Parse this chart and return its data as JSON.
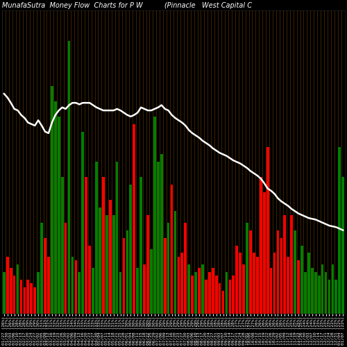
{
  "title": "MunafaSutra  Money Flow  Charts for P W          (Pinnacle   West Capital C",
  "background_color": "#000000",
  "line_color": "#ffffff",
  "categories": [
    "01/27 (26%)",
    "01/30 (27%)",
    "02/03 (26%)",
    "02/06 (26%)",
    "02/10 (28%)",
    "02/13 (28%)",
    "02/17 (28%)",
    "02/20 (29%)",
    "02/24 (29%)",
    "02/27 (29%)",
    "03/02 (30%)",
    "03/05 (31%)",
    "03/09 (31%)",
    "03/12 (31%)",
    "03/16 (31%)",
    "03/19 (32%)",
    "03/23 (32%)",
    "03/26 (33%)",
    "03/30 (33%)",
    "04/02 (33%)",
    "04/06 (34%)",
    "04/09 (34%)",
    "04/13 (33%)",
    "04/16 (33%)",
    "04/20 (33%)",
    "04/23 (33%)",
    "04/27 (33%)",
    "04/30 (33%)",
    "05/04 (33%)",
    "05/07 (33%)",
    "05/11 (32%)",
    "05/14 (32%)",
    "05/18 (31%)",
    "05/21 (31%)",
    "05/25 (31%)",
    "05/28 (31%)",
    "06/01 (30%)",
    "06/04 (30%)",
    "06/08 (30%)",
    "06/11 (30%)",
    "06/15 (30%)",
    "06/18 (30%)",
    "06/22 (30%)",
    "06/25 (30%)",
    "06/29 (30%)",
    "07/02 (30%)",
    "07/06 (30%)",
    "07/09 (29%)",
    "07/13 (29%)",
    "07/16 (29%)",
    "07/20 (29%)",
    "07/23 (29%)",
    "07/27 (29%)",
    "07/30 (29%)",
    "08/03 (29%)",
    "08/06 (29%)",
    "08/10 (29%)",
    "08/13 (29%)",
    "08/17 (29%)",
    "08/20 (29%)",
    "08/24 (29%)",
    "08/27 (28%)",
    "08/31 (28%)",
    "09/03 (28%)",
    "09/07 (28%)",
    "09/10 (28%)",
    "09/14 (28%)",
    "09/17 (28%)",
    "09/21 (27%)",
    "09/24 (27%)",
    "09/28 (27%)",
    "10/01 (27%)",
    "10/05 (27%)",
    "10/08 (27%)",
    "10/12 (26%)",
    "10/15 (26%)",
    "10/19 (26%)",
    "10/22 (26%)",
    "10/26 (26%)",
    "10/29 (26%)",
    "11/02 (26%)",
    "11/05 (26%)",
    "11/09 (25%)",
    "11/12 (25%)",
    "11/16 (25%)",
    "11/19 (25%)",
    "11/23 (25%)",
    "11/26 (25%)",
    "11/30 (24%)",
    "12/03 (24%)",
    "12/07 (24%)",
    "12/10 (24%)",
    "12/14 (23%)",
    "12/17 (23%)",
    "12/21 (23%)",
    "12/24 (23%)",
    "12/28 (22%)",
    "12/31 (22%)",
    "01/04 (22%)",
    "01/07 (22%)"
  ],
  "values": [
    55,
    75,
    60,
    50,
    65,
    45,
    35,
    45,
    40,
    35,
    55,
    120,
    100,
    75,
    300,
    280,
    260,
    180,
    120,
    360,
    75,
    70,
    55,
    240,
    180,
    90,
    60,
    200,
    140,
    180,
    130,
    150,
    130,
    200,
    55,
    100,
    110,
    170,
    250,
    60,
    180,
    65,
    130,
    85,
    260,
    200,
    210,
    100,
    120,
    170,
    135,
    75,
    80,
    120,
    65,
    50,
    55,
    60,
    65,
    45,
    55,
    60,
    50,
    40,
    30,
    55,
    45,
    50,
    90,
    80,
    65,
    120,
    110,
    80,
    75,
    180,
    160,
    220,
    60,
    80,
    110,
    100,
    130,
    75,
    130,
    110,
    70,
    90,
    55,
    80,
    60,
    55,
    50,
    65,
    55,
    45,
    65,
    45,
    220,
    180
  ],
  "bar_colors": [
    "green",
    "red",
    "red",
    "red",
    "green",
    "red",
    "red",
    "red",
    "red",
    "red",
    "green",
    "green",
    "red",
    "red",
    "green",
    "green",
    "green",
    "green",
    "red",
    "green",
    "green",
    "red",
    "green",
    "green",
    "red",
    "red",
    "green",
    "green",
    "green",
    "red",
    "green",
    "red",
    "green",
    "green",
    "green",
    "red",
    "green",
    "green",
    "red",
    "green",
    "green",
    "red",
    "red",
    "green",
    "green",
    "green",
    "green",
    "red",
    "green",
    "red",
    "green",
    "red",
    "red",
    "red",
    "green",
    "red",
    "green",
    "red",
    "green",
    "red",
    "red",
    "red",
    "red",
    "red",
    "red",
    "green",
    "red",
    "red",
    "red",
    "red",
    "red",
    "green",
    "red",
    "red",
    "red",
    "red",
    "red",
    "red",
    "red",
    "red",
    "red",
    "red",
    "red",
    "red",
    "red",
    "green",
    "red",
    "green",
    "green",
    "green",
    "green",
    "green",
    "green",
    "green",
    "green",
    "green",
    "green",
    "green",
    "green",
    "green"
  ],
  "line_values": [
    290,
    285,
    278,
    270,
    268,
    262,
    258,
    252,
    250,
    248,
    255,
    248,
    240,
    238,
    252,
    262,
    268,
    272,
    270,
    275,
    278,
    278,
    276,
    278,
    278,
    278,
    275,
    272,
    270,
    268,
    268,
    268,
    268,
    270,
    268,
    265,
    262,
    260,
    262,
    265,
    272,
    270,
    268,
    268,
    270,
    272,
    275,
    270,
    268,
    262,
    258,
    255,
    252,
    248,
    242,
    238,
    235,
    232,
    228,
    225,
    222,
    218,
    215,
    212,
    210,
    208,
    205,
    202,
    200,
    198,
    195,
    192,
    188,
    185,
    182,
    178,
    172,
    165,
    162,
    158,
    152,
    148,
    145,
    142,
    138,
    135,
    132,
    130,
    128,
    126,
    125,
    124,
    122,
    120,
    118,
    116,
    115,
    114,
    112,
    110
  ],
  "ylim": [
    0,
    400
  ],
  "title_fontsize": 7,
  "tick_fontsize": 4.5,
  "separator_color": "#5a3000"
}
